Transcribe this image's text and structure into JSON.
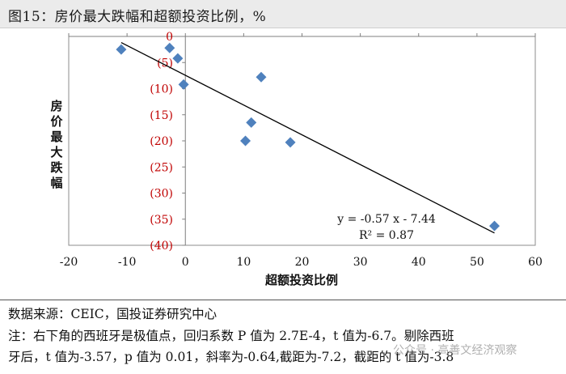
{
  "figure": {
    "title": "图15：房价最大跌幅和超额投资比例，%",
    "source": "数据来源：CEIC，国投证券研究中心",
    "note_line1": "注：右下角的西班牙是极值点，回归系数 P 值为 2.7E-4，t 值为-6.7。剔除西班",
    "note_line2": "牙后，t 值为-3.57，p 值为 0.01，斜率为-0.64,截距为-7.2，截距的 t 值为-3.8",
    "watermark": "公众号 · 高善文经济观察"
  },
  "chart_data": {
    "type": "scatter",
    "title": "",
    "xlabel": "超额投资比例",
    "ylabel": "房价最大跌幅",
    "xlim": [
      -20,
      60
    ],
    "ylim": [
      -40,
      0
    ],
    "x_ticks": [
      -20,
      -10,
      0,
      10,
      20,
      30,
      40,
      50,
      60
    ],
    "x_tick_labels": [
      "-20",
      "-10",
      "0",
      "10",
      "20",
      "30",
      "40",
      "50",
      "60"
    ],
    "y_ticks": [
      0,
      -5,
      -10,
      -15,
      -20,
      -25,
      -30,
      -35,
      -40
    ],
    "y_tick_labels": [
      "0",
      "(5)",
      "(10)",
      "(15)",
      "(20)",
      "(25)",
      "(30)",
      "(35)",
      "(40)"
    ],
    "y_tick_color": "#c00000",
    "points": [
      {
        "x": -11,
        "y": -2.5
      },
      {
        "x": -2.7,
        "y": -2.2
      },
      {
        "x": -1.3,
        "y": -4.2
      },
      {
        "x": -0.3,
        "y": -9.2
      },
      {
        "x": 13.0,
        "y": -7.8
      },
      {
        "x": 11.3,
        "y": -16.5
      },
      {
        "x": 10.3,
        "y": -20.0
      },
      {
        "x": 18.0,
        "y": -20.3
      },
      {
        "x": 53.0,
        "y": -36.3
      }
    ],
    "marker_color": "#4f81bd",
    "trendline": {
      "slope": -0.57,
      "intercept": -7.44,
      "r2": 0.87,
      "x_range": [
        -11,
        53
      ],
      "color": "#000000"
    },
    "equation_text": "y = -0.57 x - 7.44",
    "r2_text": "R² = 0.87",
    "grid": false
  }
}
